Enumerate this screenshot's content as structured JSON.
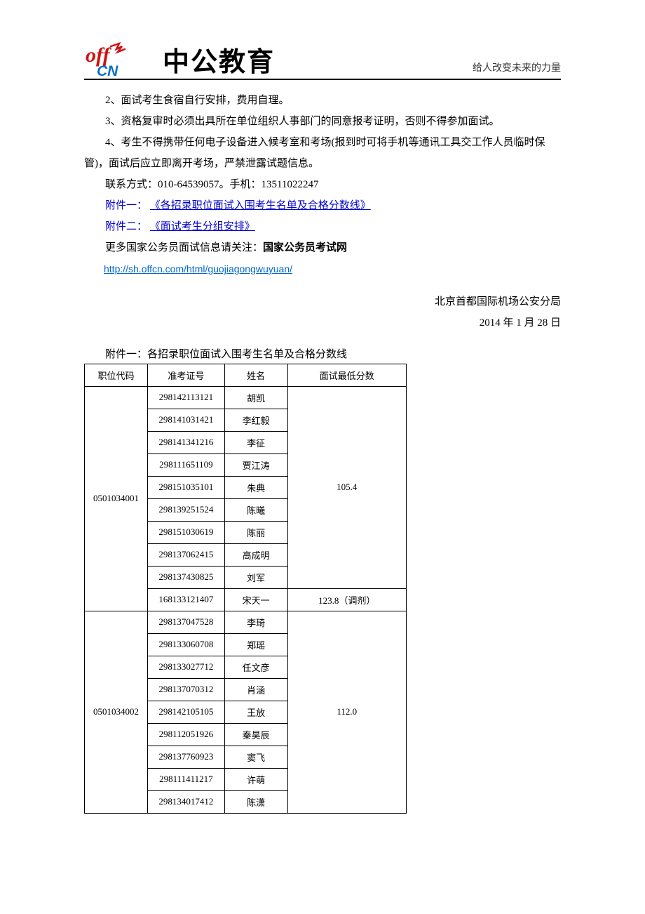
{
  "header": {
    "brand": "中公教育",
    "slogan": "给人改变未来的力量",
    "logo_color_off": "#d11111",
    "logo_color_cn": "#0b6fc9"
  },
  "paras": {
    "p2": "2、面试考生食宿自行安排，费用自理。",
    "p3": "3、资格复审时必须出具所在单位组织人事部门的同意报考证明，否则不得参加面试。",
    "p4": "4、考生不得携带任何电子设备进入候考室和考场(报到时可将手机等通讯工具交工作人员临时保管)，面试后应立即离开考场，严禁泄露试题信息。",
    "contact": "联系方式：010-64539057。手机：13511022247"
  },
  "attachments": {
    "a1_label": "附件一：",
    "a1_link": "《各招录职位面试入围考生名单及合格分数线》",
    "a2_label": "附件二：",
    "a2_link": "《面试考生分组安排》"
  },
  "more": {
    "prefix": "更多国家公务员面试信息请关注：",
    "bold": "国家公务员考试网",
    "url": "http://sh.offcn.com/html/guojiagongwuyuan/"
  },
  "signoff": {
    "org": "北京首都国际机场公安分局",
    "date": "2014 年 1 月 28 日"
  },
  "table": {
    "title": "附件一：各招录职位面试入围考生名单及合格分数线",
    "columns": [
      "职位代码",
      "准考证号",
      "姓名",
      "面试最低分数"
    ],
    "groups": [
      {
        "code": "0501034001",
        "candidates": [
          {
            "exam": "298142113121",
            "name": "胡凯"
          },
          {
            "exam": "298141031421",
            "name": "李红毅"
          },
          {
            "exam": "298141341216",
            "name": "李征"
          },
          {
            "exam": "298111651109",
            "name": "贾江涛"
          },
          {
            "exam": "298151035101",
            "name": "朱典"
          },
          {
            "exam": "298139251524",
            "name": "陈曦"
          },
          {
            "exam": "298151030619",
            "name": "陈丽"
          },
          {
            "exam": "298137062415",
            "name": "高成明"
          },
          {
            "exam": "298137430825",
            "name": "刘军"
          }
        ],
        "score": "105.4",
        "extra": {
          "exam": "168133121407",
          "name": "宋天一",
          "score": "123.8（调剂）"
        }
      },
      {
        "code": "0501034002",
        "candidates": [
          {
            "exam": "298137047528",
            "name": "李琦"
          },
          {
            "exam": "298133060708",
            "name": "郑瑶"
          },
          {
            "exam": "298133027712",
            "name": "任文彦"
          },
          {
            "exam": "298137070312",
            "name": "肖涵"
          },
          {
            "exam": "298142105105",
            "name": "王放"
          },
          {
            "exam": "298112051926",
            "name": "秦昊辰"
          },
          {
            "exam": "298137760923",
            "name": "窦飞"
          },
          {
            "exam": "298111411217",
            "name": "许萌"
          },
          {
            "exam": "298134017412",
            "name": "陈潇"
          }
        ],
        "score": "112.0"
      }
    ]
  },
  "style": {
    "link_color": "#0000d0",
    "url_color": "#0066cc",
    "border_color": "#000000",
    "body_font_size_pt": 15,
    "table_font_size_pt": 13
  }
}
